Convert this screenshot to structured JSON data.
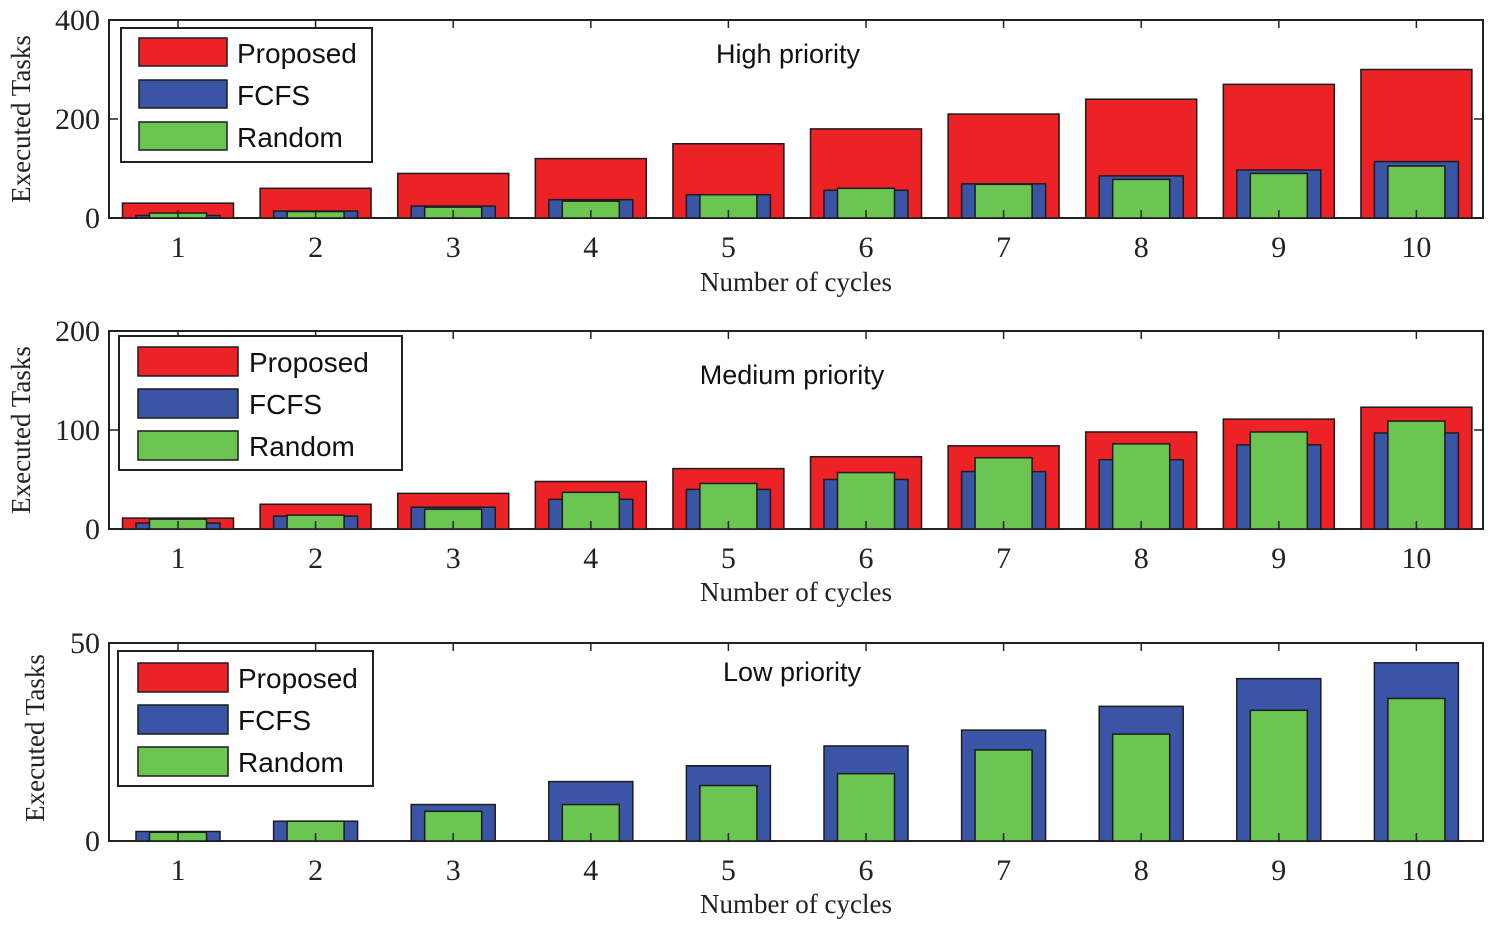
{
  "colors": {
    "proposed": "#ec2227",
    "fcfs": "#3a55a6",
    "random": "#6cc550",
    "bar_edge": "#1c1c1c",
    "axis": "#222222"
  },
  "chart_data": [
    {
      "type": "bar",
      "title": "High priority",
      "xlabel": "Number of cycles",
      "ylabel": "Executed Tasks",
      "categories": [
        "1",
        "2",
        "3",
        "4",
        "5",
        "6",
        "7",
        "8",
        "9",
        "10"
      ],
      "yticks": [
        "0",
        "200",
        "400"
      ],
      "ylim": [
        0,
        400
      ],
      "legend_position": "top-left",
      "series": [
        {
          "name": "Proposed",
          "values": [
            30,
            60,
            90,
            120,
            150,
            180,
            210,
            240,
            270,
            300
          ]
        },
        {
          "name": "FCFS",
          "values": [
            5,
            14,
            24,
            37,
            47,
            56,
            69,
            85,
            97,
            114
          ]
        },
        {
          "name": "Random",
          "values": [
            10,
            13,
            22,
            34,
            47,
            60,
            68,
            78,
            90,
            105
          ]
        }
      ]
    },
    {
      "type": "bar",
      "title": "Medium priority",
      "xlabel": "Number of cycles",
      "ylabel": "Executed Tasks",
      "categories": [
        "1",
        "2",
        "3",
        "4",
        "5",
        "6",
        "7",
        "8",
        "9",
        "10"
      ],
      "yticks": [
        "0",
        "100",
        "200"
      ],
      "ylim": [
        0,
        200
      ],
      "legend_position": "top-left",
      "series": [
        {
          "name": "Proposed",
          "values": [
            11,
            25,
            36,
            48,
            61,
            73,
            84,
            98,
            111,
            123
          ]
        },
        {
          "name": "FCFS",
          "values": [
            6,
            13,
            22,
            30,
            40,
            50,
            58,
            70,
            85,
            97
          ]
        },
        {
          "name": "Random",
          "values": [
            10,
            14,
            20,
            37,
            46,
            57,
            72,
            86,
            98,
            109
          ]
        }
      ]
    },
    {
      "type": "bar",
      "title": "Low priority",
      "xlabel": "Number of cycles",
      "ylabel": "Executed Tasks",
      "categories": [
        "1",
        "2",
        "3",
        "4",
        "5",
        "6",
        "7",
        "8",
        "9",
        "10"
      ],
      "yticks": [
        "0",
        "50"
      ],
      "ylim": [
        0,
        50
      ],
      "legend_position": "top-left",
      "series": [
        {
          "name": "Proposed",
          "values": [
            0,
            0,
            0,
            0,
            0,
            0,
            0,
            0,
            0,
            0
          ]
        },
        {
          "name": "FCFS",
          "values": [
            2.4,
            5,
            9.2,
            15,
            19,
            24,
            28,
            34,
            41,
            45
          ]
        },
        {
          "name": "Random",
          "values": [
            2.2,
            5,
            7.5,
            9.2,
            14,
            17,
            23,
            27,
            33,
            36
          ]
        }
      ]
    }
  ]
}
